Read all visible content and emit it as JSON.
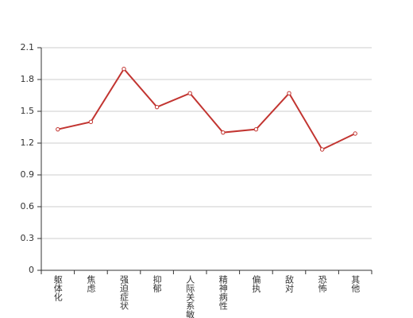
{
  "chart_data": {
    "type": "line",
    "categories": [
      "躯体化",
      "焦虑",
      "强迫症状",
      "抑郁",
      "人际关系敏感",
      "精神病性",
      "偏执",
      "敌对",
      "恐怖",
      "其他"
    ],
    "values": [
      1.33,
      1.4,
      1.9,
      1.54,
      1.67,
      1.3,
      1.33,
      1.67,
      1.14,
      1.29
    ],
    "color": "#c23531",
    "ylim": [
      0,
      2.1
    ],
    "yticks": [
      0,
      0.3,
      0.6,
      0.9,
      1.2,
      1.5,
      1.8,
      2.1
    ],
    "grid": true
  }
}
